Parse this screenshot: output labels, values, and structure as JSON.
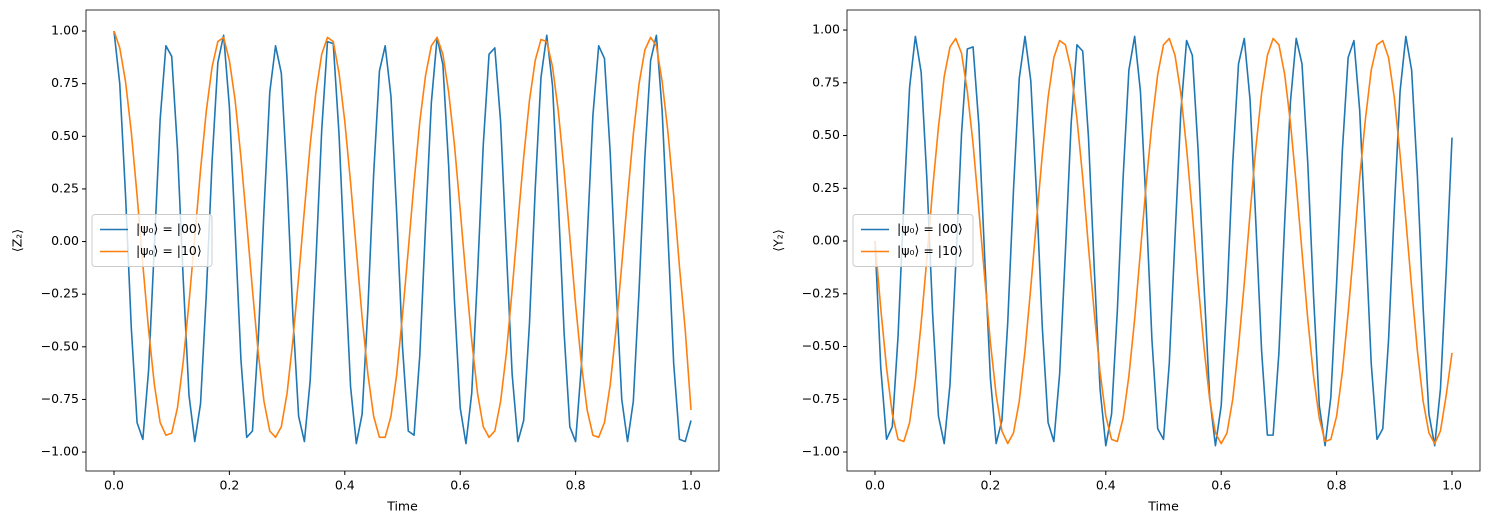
{
  "chart_data": [
    {
      "type": "line",
      "xlabel": "Time",
      "ylabel": "⟨Z₂⟩",
      "legend_loc": "center left",
      "xlim": [
        -0.0485,
        1.0485
      ],
      "ylim": [
        -1.09,
        1.1
      ],
      "xticks": [
        {
          "value": 0,
          "label": "0.0"
        },
        0.2,
        0.4,
        0.6,
        0.8,
        {
          "value": 1,
          "label": "1.0"
        }
      ],
      "yticks": [
        {
          "value": -1,
          "label": "−1.00"
        },
        {
          "value": -0.75,
          "label": "−0.75"
        },
        {
          "value": -0.5,
          "label": "−0.50"
        },
        {
          "value": -0.25,
          "label": "−0.25"
        },
        {
          "value": 0,
          "label": "0.00"
        },
        {
          "value": 0.25,
          "label": "0.25"
        },
        {
          "value": 0.5,
          "label": "0.50"
        },
        {
          "value": 0.75,
          "label": "0.75"
        },
        {
          "value": 1,
          "label": "1.00"
        }
      ],
      "x": [
        0,
        0.01,
        0.02,
        0.03,
        0.04,
        0.05,
        0.06,
        0.07,
        0.08,
        0.09,
        0.1,
        0.11,
        0.12,
        0.13,
        0.14,
        0.15,
        0.16,
        0.17,
        0.18,
        0.19,
        0.2,
        0.21,
        0.22,
        0.23,
        0.24,
        0.25,
        0.26,
        0.27,
        0.28,
        0.29,
        0.3,
        0.31,
        0.32,
        0.33,
        0.34,
        0.35,
        0.36,
        0.37,
        0.38,
        0.39,
        0.4,
        0.41,
        0.42,
        0.43,
        0.44,
        0.45,
        0.46,
        0.47,
        0.48,
        0.49,
        0.5,
        0.51,
        0.52,
        0.53,
        0.54,
        0.55,
        0.56,
        0.57,
        0.58,
        0.59,
        0.6,
        0.61,
        0.62,
        0.63,
        0.64,
        0.65,
        0.66,
        0.67,
        0.68,
        0.69,
        0.7,
        0.71,
        0.72,
        0.73,
        0.74,
        0.75,
        0.76,
        0.77,
        0.78,
        0.79,
        0.8,
        0.81,
        0.82,
        0.83,
        0.84,
        0.85,
        0.86,
        0.87,
        0.88,
        0.89,
        0.9,
        0.91,
        0.92,
        0.93,
        0.94,
        0.95,
        0.96,
        0.97,
        0.98,
        0.99,
        1
      ],
      "series": [
        {
          "name": "|ψ₀⟩ = |00⟩",
          "color": "#1f77b4",
          "values": [
            1.0,
            0.75,
            0.22,
            -0.41,
            -0.86,
            -0.94,
            -0.61,
            -0.02,
            0.58,
            0.93,
            0.88,
            0.44,
            -0.18,
            -0.73,
            -0.95,
            -0.77,
            -0.25,
            0.38,
            0.85,
            0.98,
            0.64,
            0.05,
            -0.56,
            -0.93,
            -0.9,
            -0.47,
            0.15,
            0.71,
            0.93,
            0.8,
            0.29,
            -0.35,
            -0.83,
            -0.95,
            -0.66,
            -0.09,
            0.53,
            0.95,
            0.94,
            0.51,
            -0.11,
            -0.69,
            -0.96,
            -0.82,
            -0.32,
            0.32,
            0.81,
            0.93,
            0.69,
            0.13,
            -0.5,
            -0.9,
            -0.92,
            -0.54,
            0.08,
            0.66,
            0.97,
            0.84,
            0.36,
            -0.28,
            -0.79,
            -0.96,
            -0.72,
            -0.16,
            0.46,
            0.89,
            0.92,
            0.57,
            -0.04,
            -0.63,
            -0.95,
            -0.85,
            -0.39,
            0.25,
            0.78,
            0.98,
            0.74,
            0.19,
            -0.43,
            -0.88,
            -0.95,
            -0.59,
            0.01,
            0.6,
            0.93,
            0.87,
            0.42,
            -0.21,
            -0.75,
            -0.95,
            -0.76,
            -0.23,
            0.4,
            0.86,
            0.98,
            0.62,
            0.03,
            -0.58,
            -0.94,
            -0.95,
            -0.85
          ]
        },
        {
          "name": "|ψ₀⟩ = |10⟩",
          "color": "#ff7f0e",
          "values": [
            1.0,
            0.92,
            0.76,
            0.52,
            0.22,
            -0.11,
            -0.42,
            -0.68,
            -0.86,
            -0.92,
            -0.91,
            -0.79,
            -0.57,
            -0.29,
            0.02,
            0.34,
            0.62,
            0.83,
            0.95,
            0.97,
            0.86,
            0.67,
            0.4,
            0.09,
            -0.23,
            -0.53,
            -0.76,
            -0.9,
            -0.93,
            -0.88,
            -0.72,
            -0.47,
            -0.17,
            0.15,
            0.46,
            0.71,
            0.89,
            0.97,
            0.95,
            0.8,
            0.57,
            0.28,
            -0.04,
            -0.36,
            -0.63,
            -0.83,
            -0.93,
            -0.93,
            -0.83,
            -0.63,
            -0.35,
            -0.04,
            0.28,
            0.57,
            0.79,
            0.93,
            0.97,
            0.89,
            0.71,
            0.46,
            0.15,
            -0.17,
            -0.47,
            -0.72,
            -0.88,
            -0.93,
            -0.9,
            -0.76,
            -0.53,
            -0.23,
            0.09,
            0.4,
            0.67,
            0.86,
            0.96,
            0.95,
            0.83,
            0.62,
            0.34,
            0.02,
            -0.3,
            -0.58,
            -0.8,
            -0.92,
            -0.93,
            -0.86,
            -0.68,
            -0.42,
            -0.11,
            0.21,
            0.51,
            0.75,
            0.91,
            0.97,
            0.93,
            0.76,
            0.52,
            0.22,
            -0.12,
            -0.42,
            -0.8
          ]
        }
      ]
    },
    {
      "type": "line",
      "xlabel": "Time",
      "ylabel": "⟨Y₂⟩",
      "legend_loc": "center left",
      "xlim": [
        -0.0485,
        1.0485
      ],
      "ylim": [
        -1.09,
        1.095
      ],
      "xticks": [
        {
          "value": 0,
          "label": "0.0"
        },
        0.2,
        0.4,
        0.6,
        0.8,
        {
          "value": 1,
          "label": "1.0"
        }
      ],
      "yticks": [
        {
          "value": -1,
          "label": "−1.00"
        },
        {
          "value": -0.75,
          "label": "−0.75"
        },
        {
          "value": -0.5,
          "label": "−0.50"
        },
        {
          "value": -0.25,
          "label": "−0.25"
        },
        {
          "value": 0,
          "label": "0.00"
        },
        {
          "value": 0.25,
          "label": "0.25"
        },
        {
          "value": 0.5,
          "label": "0.50"
        },
        {
          "value": 0.75,
          "label": "0.75"
        },
        {
          "value": 1,
          "label": "1.00"
        }
      ],
      "x": [
        0,
        0.01,
        0.02,
        0.03,
        0.04,
        0.05,
        0.06,
        0.07,
        0.08,
        0.09,
        0.1,
        0.11,
        0.12,
        0.13,
        0.14,
        0.15,
        0.16,
        0.17,
        0.18,
        0.19,
        0.2,
        0.21,
        0.22,
        0.23,
        0.24,
        0.25,
        0.26,
        0.27,
        0.28,
        0.29,
        0.3,
        0.31,
        0.32,
        0.33,
        0.34,
        0.35,
        0.36,
        0.37,
        0.38,
        0.39,
        0.4,
        0.41,
        0.42,
        0.43,
        0.44,
        0.45,
        0.46,
        0.47,
        0.48,
        0.49,
        0.5,
        0.51,
        0.52,
        0.53,
        0.54,
        0.55,
        0.56,
        0.57,
        0.58,
        0.59,
        0.6,
        0.61,
        0.62,
        0.63,
        0.64,
        0.65,
        0.66,
        0.67,
        0.68,
        0.69,
        0.7,
        0.71,
        0.72,
        0.73,
        0.74,
        0.75,
        0.76,
        0.77,
        0.78,
        0.79,
        0.8,
        0.81,
        0.82,
        0.83,
        0.84,
        0.85,
        0.86,
        0.87,
        0.88,
        0.89,
        0.9,
        0.91,
        0.92,
        0.93,
        0.94,
        0.95,
        0.96,
        0.97,
        0.98,
        0.99,
        1
      ],
      "series": [
        {
          "name": "|ψ₀⟩ = |00⟩",
          "color": "#1f77b4",
          "values": [
            0.0,
            -0.6,
            -0.94,
            -0.88,
            -0.45,
            0.18,
            0.73,
            0.97,
            0.8,
            0.29,
            -0.35,
            -0.83,
            -0.96,
            -0.68,
            -0.11,
            0.51,
            0.91,
            0.92,
            0.55,
            -0.07,
            -0.65,
            -0.96,
            -0.85,
            -0.39,
            0.24,
            0.77,
            0.97,
            0.76,
            0.22,
            -0.41,
            -0.86,
            -0.95,
            -0.63,
            -0.05,
            0.56,
            0.93,
            0.9,
            0.49,
            -0.13,
            -0.7,
            -0.97,
            -0.82,
            -0.33,
            0.3,
            0.81,
            0.97,
            0.71,
            0.16,
            -0.47,
            -0.89,
            -0.94,
            -0.58,
            0.02,
            0.61,
            0.95,
            0.88,
            0.43,
            -0.2,
            -0.74,
            -0.97,
            -0.78,
            -0.27,
            0.37,
            0.84,
            0.96,
            0.67,
            0.09,
            -0.52,
            -0.92,
            -0.92,
            -0.53,
            0.09,
            0.66,
            0.96,
            0.84,
            0.37,
            -0.26,
            -0.78,
            -0.97,
            -0.74,
            -0.2,
            0.43,
            0.87,
            0.95,
            0.62,
            0.03,
            -0.58,
            -0.94,
            -0.89,
            -0.47,
            0.15,
            0.71,
            0.97,
            0.81,
            0.31,
            -0.32,
            -0.82,
            -0.97,
            -0.7,
            -0.14,
            0.49
          ]
        },
        {
          "name": "|ψ₀⟩ = |10⟩",
          "color": "#ff7f0e",
          "values": [
            0.0,
            -0.32,
            -0.6,
            -0.82,
            -0.94,
            -0.95,
            -0.86,
            -0.66,
            -0.39,
            -0.08,
            0.25,
            0.54,
            0.78,
            0.92,
            0.96,
            0.89,
            0.71,
            0.46,
            0.15,
            -0.17,
            -0.48,
            -0.73,
            -0.9,
            -0.96,
            -0.91,
            -0.76,
            -0.52,
            -0.22,
            0.1,
            0.41,
            0.68,
            0.87,
            0.95,
            0.93,
            0.81,
            0.58,
            0.3,
            -0.03,
            -0.34,
            -0.62,
            -0.83,
            -0.94,
            -0.95,
            -0.84,
            -0.64,
            -0.37,
            -0.05,
            0.27,
            0.56,
            0.79,
            0.93,
            0.96,
            0.88,
            0.7,
            0.44,
            0.13,
            -0.2,
            -0.5,
            -0.75,
            -0.91,
            -0.96,
            -0.91,
            -0.75,
            -0.5,
            -0.2,
            0.13,
            0.44,
            0.7,
            0.88,
            0.96,
            0.93,
            0.79,
            0.56,
            0.27,
            -0.05,
            -0.37,
            -0.64,
            -0.84,
            -0.95,
            -0.94,
            -0.83,
            -0.62,
            -0.34,
            -0.03,
            0.3,
            0.58,
            0.81,
            0.93,
            0.95,
            0.87,
            0.68,
            0.41,
            0.1,
            -0.22,
            -0.52,
            -0.76,
            -0.91,
            -0.96,
            -0.9,
            -0.73,
            -0.53
          ]
        }
      ]
    }
  ]
}
